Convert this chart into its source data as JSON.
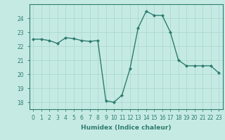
{
  "x": [
    0,
    1,
    2,
    3,
    4,
    5,
    6,
    7,
    8,
    9,
    10,
    11,
    12,
    13,
    14,
    15,
    16,
    17,
    18,
    19,
    20,
    21,
    22,
    23
  ],
  "y": [
    22.5,
    22.5,
    22.4,
    22.2,
    22.6,
    22.55,
    22.4,
    22.35,
    22.4,
    18.1,
    18.0,
    18.5,
    20.4,
    23.3,
    24.5,
    24.2,
    24.2,
    23.0,
    21.0,
    20.6,
    20.6,
    20.6,
    20.6,
    20.1
  ],
  "line_color": "#2e7d6e",
  "marker": "D",
  "marker_size": 2,
  "bg_color": "#c5eae4",
  "grid_color": "#a8d5cc",
  "xlabel": "Humidex (Indice chaleur)",
  "xlim": [
    -0.5,
    23.5
  ],
  "ylim": [
    17.5,
    25.0
  ],
  "yticks": [
    18,
    19,
    20,
    21,
    22,
    23,
    24
  ],
  "xticks": [
    0,
    1,
    2,
    3,
    4,
    5,
    6,
    7,
    8,
    9,
    10,
    11,
    12,
    13,
    14,
    15,
    16,
    17,
    18,
    19,
    20,
    21,
    22,
    23
  ],
  "xlabel_fontsize": 6.5,
  "tick_fontsize": 5.5,
  "line_width": 1.0
}
